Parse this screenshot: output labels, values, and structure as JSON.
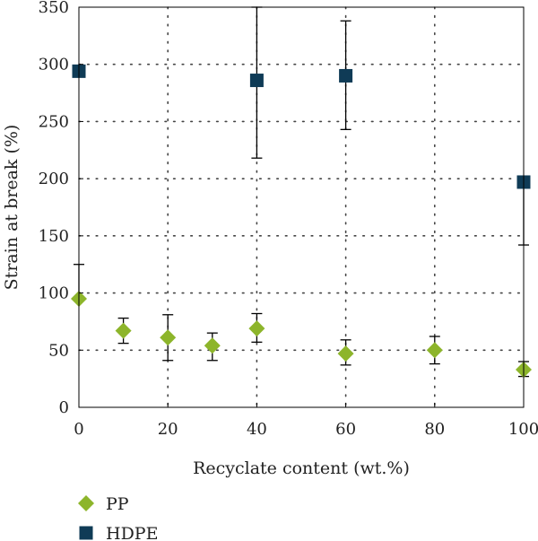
{
  "chart_data": {
    "type": "scatter",
    "xlabel": "Recyclate content (wt.%)",
    "ylabel": "Strain at break (%)",
    "xlim": [
      0,
      100
    ],
    "ylim": [
      0,
      350
    ],
    "xticks": [
      0,
      20,
      40,
      60,
      80,
      100
    ],
    "yticks": [
      0,
      50,
      100,
      150,
      200,
      250,
      300,
      350
    ],
    "xtick_labels": [
      "0",
      "20",
      "40",
      "60",
      "80",
      "100"
    ],
    "ytick_labels": [
      "0",
      "50",
      "100",
      "150",
      "200",
      "250",
      "300",
      "350"
    ],
    "grid": true,
    "legend_position": "bottom-left",
    "series": [
      {
        "name": "PP",
        "marker": "diamond",
        "color": "#8db52b",
        "points": [
          {
            "x": 0,
            "y": 95,
            "err_low": 95,
            "err_high": 125
          },
          {
            "x": 10,
            "y": 67,
            "err_low": 56,
            "err_high": 78
          },
          {
            "x": 20,
            "y": 61,
            "err_low": 41,
            "err_high": 81
          },
          {
            "x": 30,
            "y": 54,
            "err_low": 41,
            "err_high": 65
          },
          {
            "x": 40,
            "y": 69,
            "err_low": 57,
            "err_high": 82
          },
          {
            "x": 60,
            "y": 47,
            "err_low": 37,
            "err_high": 59
          },
          {
            "x": 80,
            "y": 50,
            "err_low": 38,
            "err_high": 62
          },
          {
            "x": 100,
            "y": 33,
            "err_low": 27,
            "err_high": 40
          }
        ]
      },
      {
        "name": "HDPE",
        "marker": "square",
        "color": "#0f3b56",
        "points": [
          {
            "x": 0,
            "y": 294
          },
          {
            "x": 40,
            "y": 286,
            "err_low": 218,
            "err_high": 350
          },
          {
            "x": 60,
            "y": 290,
            "err_low": 243,
            "err_high": 338
          },
          {
            "x": 100,
            "y": 197,
            "err_low": 142,
            "err_high": 197
          }
        ]
      }
    ]
  }
}
